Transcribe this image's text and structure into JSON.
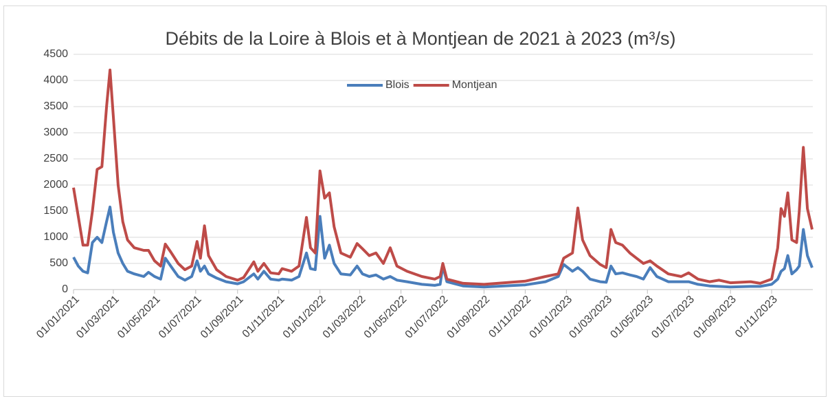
{
  "chart_data": {
    "type": "line",
    "title": "Débits de la Loire à Blois et à Montjean de 2021 à 2023 (m³/s)",
    "legend": "top",
    "grid": true,
    "x": [
      "01/01/2021",
      "08/01/2021",
      "15/01/2021",
      "22/01/2021",
      "29/01/2021",
      "05/02/2021",
      "12/02/2021",
      "19/02/2021",
      "24/02/2021",
      "01/03/2021",
      "08/03/2021",
      "15/03/2021",
      "22/03/2021",
      "01/04/2021",
      "15/04/2021",
      "22/04/2021",
      "01/05/2021",
      "10/05/2021",
      "17/05/2021",
      "25/05/2021",
      "05/06/2021",
      "15/06/2021",
      "25/06/2021",
      "03/07/2021",
      "08/07/2021",
      "14/07/2021",
      "20/07/2021",
      "01/08/2021",
      "15/08/2021",
      "01/09/2021",
      "10/09/2021",
      "25/09/2021",
      "01/10/2021",
      "10/10/2021",
      "20/10/2021",
      "01/11/2021",
      "06/11/2021",
      "20/11/2021",
      "01/12/2021",
      "12/12/2021",
      "18/12/2021",
      "25/12/2021",
      "01/01/2022",
      "08/01/2022",
      "15/01/2022",
      "22/01/2022",
      "01/02/2022",
      "15/02/2022",
      "25/02/2022",
      "05/03/2022",
      "15/03/2022",
      "25/03/2022",
      "05/04/2022",
      "15/04/2022",
      "25/04/2022",
      "10/05/2022",
      "01/06/2022",
      "20/06/2022",
      "28/06/2022",
      "02/07/2022",
      "08/07/2022",
      "01/08/2022",
      "01/09/2022",
      "01/10/2022",
      "01/11/2022",
      "01/12/2022",
      "20/12/2022",
      "28/12/2022",
      "10/01/2023",
      "18/01/2023",
      "25/01/2023",
      "05/02/2023",
      "20/02/2023",
      "01/03/2023",
      "08/03/2023",
      "15/03/2023",
      "25/03/2023",
      "05/04/2023",
      "15/04/2023",
      "25/04/2023",
      "05/05/2023",
      "15/05/2023",
      "01/06/2023",
      "20/06/2023",
      "01/07/2023",
      "15/07/2023",
      "01/08/2023",
      "15/08/2023",
      "01/09/2023",
      "01/10/2023",
      "15/10/2023",
      "01/11/2023",
      "10/11/2023",
      "15/11/2023",
      "20/11/2023",
      "25/11/2023",
      "01/12/2023",
      "08/12/2023",
      "12/12/2023",
      "18/12/2023",
      "24/12/2023",
      "31/12/2023"
    ],
    "series": [
      {
        "name": "Blois",
        "color": "#4a7ebb",
        "values": [
          620,
          450,
          350,
          320,
          900,
          1000,
          900,
          1300,
          1580,
          1100,
          700,
          500,
          350,
          300,
          250,
          330,
          250,
          200,
          600,
          450,
          250,
          180,
          250,
          550,
          350,
          450,
          300,
          220,
          150,
          110,
          150,
          300,
          200,
          350,
          200,
          180,
          200,
          180,
          250,
          700,
          400,
          380,
          1400,
          600,
          850,
          500,
          300,
          280,
          450,
          300,
          250,
          280,
          200,
          250,
          180,
          150,
          100,
          80,
          100,
          450,
          150,
          70,
          50,
          70,
          90,
          150,
          250,
          480,
          350,
          420,
          350,
          200,
          150,
          140,
          450,
          300,
          320,
          280,
          250,
          200,
          420,
          250,
          150,
          150,
          150,
          100,
          70,
          60,
          50,
          60,
          60,
          100,
          200,
          350,
          400,
          650,
          300,
          380,
          450,
          1150,
          650,
          420
        ]
      },
      {
        "name": "Montjean",
        "color": "#be4b48",
        "values": [
          1950,
          1400,
          850,
          850,
          1500,
          2300,
          2350,
          3500,
          4200,
          3300,
          2000,
          1300,
          950,
          800,
          750,
          750,
          550,
          450,
          870,
          720,
          500,
          380,
          450,
          920,
          600,
          1220,
          650,
          380,
          250,
          180,
          230,
          530,
          350,
          500,
          320,
          300,
          400,
          350,
          450,
          1380,
          800,
          700,
          2270,
          1750,
          1850,
          1200,
          700,
          620,
          880,
          780,
          650,
          700,
          500,
          800,
          450,
          350,
          250,
          200,
          250,
          500,
          200,
          120,
          100,
          130,
          160,
          250,
          300,
          600,
          700,
          1560,
          950,
          650,
          480,
          420,
          1150,
          900,
          850,
          700,
          600,
          500,
          550,
          450,
          300,
          250,
          320,
          200,
          150,
          180,
          130,
          150,
          120,
          200,
          800,
          1550,
          1400,
          1850,
          950,
          900,
          1500,
          2720,
          1550,
          1150
        ]
      }
    ],
    "xlim": [
      "01/01/2021",
      "31/12/2023"
    ],
    "xticks": [
      "01/01/2021",
      "01/03/2021",
      "01/05/2021",
      "01/07/2021",
      "01/09/2021",
      "01/11/2021",
      "01/01/2022",
      "01/03/2022",
      "01/05/2022",
      "01/07/2022",
      "01/09/2022",
      "01/11/2022",
      "01/01/2023",
      "01/03/2023",
      "01/05/2023",
      "01/07/2023",
      "01/09/2023",
      "01/11/2023"
    ],
    "ylim": [
      0,
      4500
    ],
    "yticks": [
      0,
      500,
      1000,
      1500,
      2000,
      2500,
      3000,
      3500,
      4000,
      4500
    ]
  }
}
